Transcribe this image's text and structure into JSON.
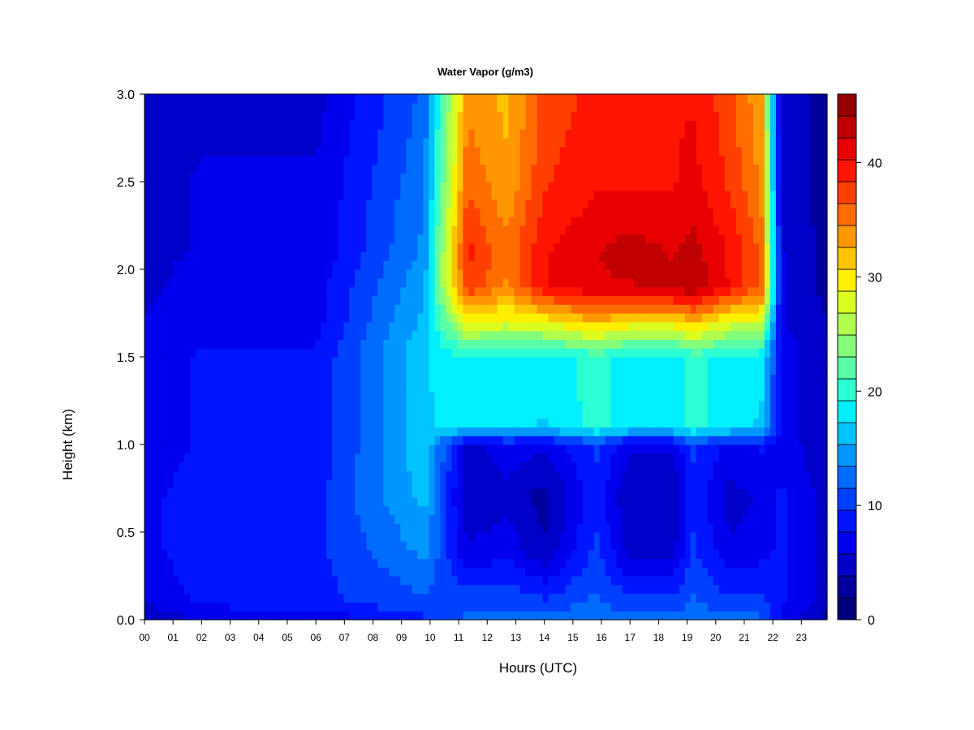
{
  "chart_data": {
    "type": "heatmap",
    "title": "Water Vapor (g/m3)",
    "xlabel": "Hours (UTC)",
    "ylabel": "Height (km)",
    "x_ticks": [
      "00",
      "01",
      "02",
      "03",
      "04",
      "05",
      "06",
      "07",
      "08",
      "09",
      "10",
      "11",
      "12",
      "13",
      "14",
      "15",
      "16",
      "17",
      "18",
      "19",
      "20",
      "21",
      "22",
      "23"
    ],
    "y_ticks": [
      "0.0",
      "0.5",
      "1.0",
      "1.5",
      "2.0",
      "2.5",
      "3.0"
    ],
    "xlim": [
      0,
      23.9
    ],
    "ylim": [
      0,
      3.0
    ],
    "colorbar": {
      "range": [
        0,
        46
      ],
      "ticks": [
        "0",
        "10",
        "20",
        "30",
        "40"
      ],
      "tick_values": [
        0,
        10,
        20,
        30,
        40
      ],
      "levels": 20,
      "colors": [
        "#00007f",
        "#00009f",
        "#0000c8",
        "#0000ee",
        "#0014ff",
        "#0040ff",
        "#006cff",
        "#0098ff",
        "#00c4ff",
        "#00f0ff",
        "#2cffd2",
        "#58ffa6",
        "#84ff7a",
        "#b0ff4e",
        "#dcff22",
        "#fff000",
        "#ffc400",
        "#ff9800",
        "#ff6c00",
        "#ff4000",
        "#ff1400",
        "#e80000",
        "#c00000",
        "#960000"
      ]
    },
    "grid": false,
    "legend": "colorbar-right",
    "profile_heights_km": [
      0.0,
      0.1,
      0.4,
      0.7,
      1.0,
      1.1,
      1.5,
      1.7,
      1.9,
      2.1,
      2.5,
      3.0
    ],
    "series": [
      {
        "time_hr": 0.0,
        "values": [
          3,
          6,
          7,
          7,
          6,
          6,
          6,
          6,
          5,
          5,
          5,
          4
        ]
      },
      {
        "time_hr": 2.0,
        "values": [
          6,
          8,
          9,
          9,
          8,
          8,
          8,
          7,
          7,
          6,
          6,
          5
        ]
      },
      {
        "time_hr": 6.0,
        "values": [
          6,
          9,
          9,
          9,
          8,
          8,
          8,
          7,
          7,
          6,
          6,
          5
        ]
      },
      {
        "time_hr": 9.8,
        "values": [
          9,
          11,
          14,
          16,
          17,
          17,
          17,
          16,
          15,
          14,
          13,
          12
        ]
      },
      {
        "time_hr": 11.3,
        "values": [
          12,
          11,
          6,
          4,
          5,
          18,
          19,
          29,
          38,
          39,
          36,
          34
        ]
      },
      {
        "time_hr": 12.7,
        "values": [
          13,
          11,
          7,
          5,
          7,
          18,
          18,
          28,
          34,
          35,
          33,
          32
        ]
      },
      {
        "time_hr": 14.0,
        "values": [
          12,
          10,
          4,
          3,
          6,
          17,
          18,
          29,
          40,
          40,
          38,
          37
        ]
      },
      {
        "time_hr": 15.8,
        "values": [
          13,
          12,
          10,
          9,
          10,
          20,
          20,
          32,
          42,
          42,
          40,
          39
        ]
      },
      {
        "time_hr": 17.0,
        "values": [
          12,
          10,
          5,
          4,
          6,
          18,
          18,
          30,
          42,
          43,
          40,
          39
        ]
      },
      {
        "time_hr": 18.5,
        "values": [
          12,
          10,
          5,
          4,
          6,
          18,
          18,
          30,
          43,
          42,
          40,
          40
        ]
      },
      {
        "time_hr": 19.2,
        "values": [
          13,
          12,
          10,
          9,
          10,
          20,
          20,
          32,
          44,
          43,
          41,
          40
        ]
      },
      {
        "time_hr": 20.5,
        "values": [
          12,
          10,
          6,
          5,
          7,
          18,
          18,
          28,
          40,
          40,
          38,
          37
        ]
      },
      {
        "time_hr": 21.6,
        "values": [
          12,
          10,
          7,
          6,
          8,
          17,
          18,
          28,
          36,
          36,
          34,
          33
        ]
      },
      {
        "time_hr": 22.3,
        "values": [
          7,
          8,
          8,
          8,
          7,
          7,
          7,
          6,
          6,
          6,
          5,
          5
        ]
      },
      {
        "time_hr": 23.9,
        "values": [
          3,
          5,
          5,
          5,
          4,
          4,
          4,
          4,
          3,
          3,
          3,
          3
        ]
      }
    ]
  }
}
